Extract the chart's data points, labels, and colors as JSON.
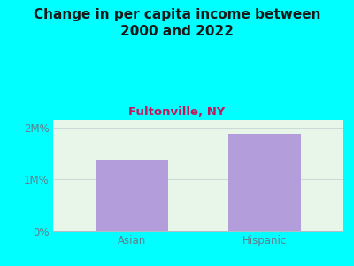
{
  "categories": [
    "Asian",
    "Hispanic"
  ],
  "values": [
    1380000,
    1870000
  ],
  "bar_color": "#b39ddb",
  "background_color": "#00FFFF",
  "plot_bg_color_left": "#c8e6c9",
  "plot_bg_color": "#e8f5e9",
  "title": "Change in per capita income between\n2000 and 2022",
  "subtitle": "Fultonville, NY",
  "title_fontsize": 11,
  "subtitle_fontsize": 9.5,
  "title_color": "#1a1a1a",
  "subtitle_color": "#c2185b",
  "ytick_labels": [
    "0%",
    "1M%",
    "2M%"
  ],
  "ytick_values": [
    0,
    1000000,
    2000000
  ],
  "ylim": [
    0,
    2150000
  ],
  "tick_label_color": "#607d8b",
  "grid_color": "#b0bec5",
  "bar_width": 0.55
}
